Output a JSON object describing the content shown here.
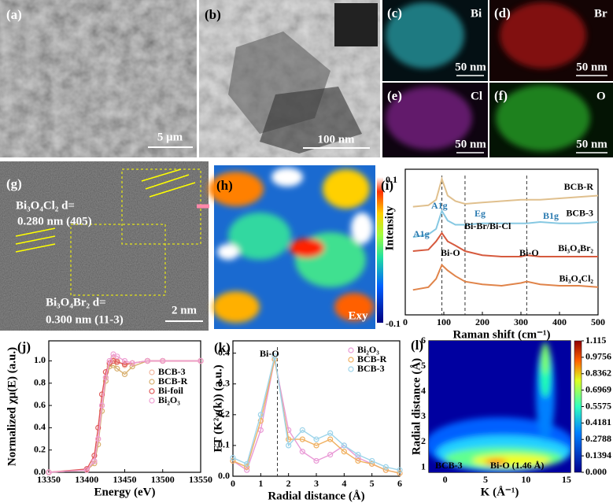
{
  "panels": {
    "a": {
      "label": "(a)",
      "scale": "5 μm"
    },
    "b": {
      "label": "(b)",
      "scale": "100 nm"
    },
    "c": {
      "label": "(c)",
      "element": "Bi",
      "scale": "50 nm"
    },
    "d": {
      "label": "(d)",
      "element": "Br",
      "scale": "50 nm"
    },
    "e": {
      "label": "(e)",
      "element": "Cl",
      "scale": "50 nm"
    },
    "f": {
      "label": "(f)",
      "element": "O",
      "scale": "50 nm"
    },
    "g": {
      "label": "(g)",
      "annotations": [
        "Bi₃O₄Cl₂ d=",
        "0.280 nm (405)",
        "Bi₃O₄Br₂ d=",
        "0.300 nm (11-3)"
      ],
      "scale": "2 nm"
    },
    "h": {
      "label": "(h)",
      "colorbar_title": "Intensity",
      "colorbar_max": "0.1",
      "colorbar_min": "-0.1",
      "strain": "Exy"
    }
  },
  "chart_data": [
    {
      "type": "line",
      "label": "(i)",
      "x_label": "Raman shift (cm⁻¹)",
      "x": [
        20,
        60,
        80,
        95,
        110,
        130,
        155,
        200,
        250,
        300,
        315,
        350,
        400,
        450,
        500
      ],
      "xlim": [
        0,
        500
      ],
      "xticks": [
        0,
        100,
        200,
        300,
        400,
        500
      ],
      "ylim": [
        0,
        10.5
      ],
      "reference_lines": [
        95,
        155,
        315
      ],
      "annotations": [
        "A1g",
        "Eg",
        "B1g",
        "Bi-Br/Bi-Cl",
        "A1g",
        "Bi-O",
        "Bi-O"
      ],
      "series": [
        {
          "name": "BCB-R",
          "color": "#e0c08e",
          "values": [
            7.8,
            7.9,
            8.3,
            9.8,
            8.6,
            8.2,
            8.0,
            8.1,
            8.2,
            8.3,
            8.3,
            8.3,
            8.4,
            8.5,
            8.6
          ]
        },
        {
          "name": "BCB-3",
          "color": "#86c8e2",
          "values": [
            5.6,
            5.8,
            6.2,
            7.5,
            6.8,
            6.5,
            6.5,
            6.6,
            6.6,
            6.6,
            6.6,
            6.7,
            6.6,
            6.6,
            6.7
          ]
        },
        {
          "name": "Bi₃O₄Br₂",
          "color": "#d65a3e",
          "values": [
            4.6,
            4.7,
            5.3,
            5.9,
            5.3,
            5.0,
            4.6,
            4.3,
            4.2,
            4.2,
            4.3,
            4.2,
            4.2,
            4.2,
            4.2
          ]
        },
        {
          "name": "Bi₃O₄Cl₂",
          "color": "#e0844a",
          "values": [
            1.8,
            2.0,
            2.6,
            3.6,
            3.2,
            2.8,
            2.4,
            2.2,
            2.1,
            2.3,
            2.4,
            2.2,
            2.1,
            2.1,
            2.0
          ]
        }
      ]
    },
    {
      "type": "line",
      "label": "(j)",
      "x_label": "Energy (eV)",
      "y_label": "Normalized χμ(E) (a.u.)",
      "markers": true,
      "legend": "right",
      "x": [
        13350,
        13400,
        13410,
        13415,
        13420,
        13425,
        13430,
        13435,
        13440,
        13450,
        13460,
        13480,
        13500,
        13550
      ],
      "xlim": [
        13350,
        13550
      ],
      "xticks": [
        13350,
        13400,
        13450,
        13500,
        13550
      ],
      "ylim": [
        0,
        1.18
      ],
      "yticks": [
        {
          "value": 0,
          "label": "0.0"
        },
        0.2,
        0.4,
        0.6,
        0.8,
        {
          "value": 1,
          "label": "1.0"
        }
      ],
      "series": [
        {
          "name": "BCB-3",
          "color": "#f2b8a0",
          "values": [
            0,
            0.02,
            0.1,
            0.3,
            0.6,
            0.85,
            0.97,
            1.03,
            1.0,
            0.96,
            0.98,
            1.0,
            1.0,
            1.0
          ]
        },
        {
          "name": "BCB-R",
          "color": "#d8b070",
          "values": [
            0,
            0.02,
            0.08,
            0.25,
            0.55,
            0.82,
            0.95,
            0.96,
            0.93,
            0.88,
            0.95,
            1.0,
            1.0,
            1.0
          ]
        },
        {
          "name": "Bi-foil",
          "color": "#e05a5a",
          "values": [
            0,
            0.03,
            0.15,
            0.4,
            0.7,
            0.9,
            0.98,
            1.0,
            0.99,
            0.97,
            0.98,
            1.0,
            1.0,
            1.0
          ]
        },
        {
          "name": "Bi₂O₃",
          "color": "#ee9ed2",
          "values": [
            0,
            0.02,
            0.1,
            0.3,
            0.6,
            0.85,
            1.0,
            1.06,
            1.04,
            1.0,
            0.98,
            1.0,
            1.0,
            1.0
          ]
        }
      ]
    },
    {
      "type": "line",
      "label": "(k)",
      "x_label": "Radial distance (Å)",
      "y_label": "FT (K²χ(k)) (a.u.)",
      "markers": true,
      "legend": "upper right",
      "annotations": [
        "Bi-O"
      ],
      "reference_lines": [
        1.6
      ],
      "x": [
        0,
        0.5,
        1,
        1.5,
        2,
        2.5,
        3,
        3.5,
        4,
        4.5,
        5,
        5.5,
        6
      ],
      "xlim": [
        0,
        6
      ],
      "xticks": [
        0,
        1,
        2,
        3,
        4,
        5,
        6
      ],
      "ylim": [
        0,
        0.44
      ],
      "yticks": [
        {
          "value": 0,
          "label": "0.0"
        },
        0.1,
        0.2,
        0.3,
        0.4
      ],
      "series": [
        {
          "name": "Bi₂O₃",
          "color": "#e99ad6",
          "values": [
            0.05,
            0.02,
            0.15,
            0.38,
            0.15,
            0.08,
            0.05,
            0.07,
            0.1,
            0.06,
            0.04,
            0.02,
            0.01
          ]
        },
        {
          "name": "BCB-R",
          "color": "#f0b060",
          "values": [
            0.05,
            0.03,
            0.18,
            0.38,
            0.12,
            0.12,
            0.1,
            0.12,
            0.08,
            0.05,
            0.04,
            0.02,
            0.01
          ]
        },
        {
          "name": "BCB-3",
          "color": "#9dd4ea",
          "values": [
            0.06,
            0.04,
            0.2,
            0.39,
            0.1,
            0.15,
            0.12,
            0.14,
            0.1,
            0.07,
            0.05,
            0.03,
            0.02
          ]
        }
      ]
    },
    {
      "type": "contour",
      "label": "(l)",
      "x_label": "K (Å⁻¹)",
      "y_label": "Radial distance (Å)",
      "annotations": [
        "BCB-3",
        "Bi-O (1.46 Å)"
      ],
      "xlim": [
        -2,
        15.5
      ],
      "xticks": [
        0,
        5,
        10,
        15
      ],
      "ylim": [
        0.8,
        6
      ],
      "yticks": [
        1,
        2,
        3,
        4,
        5,
        6
      ],
      "clim": [
        0,
        1.115
      ],
      "cticks": [
        {
          "value": 0,
          "label": "0.000"
        },
        0.1394,
        0.2788,
        0.4181,
        0.5575,
        0.6969,
        0.8362,
        0.9756,
        1.115
      ]
    }
  ]
}
